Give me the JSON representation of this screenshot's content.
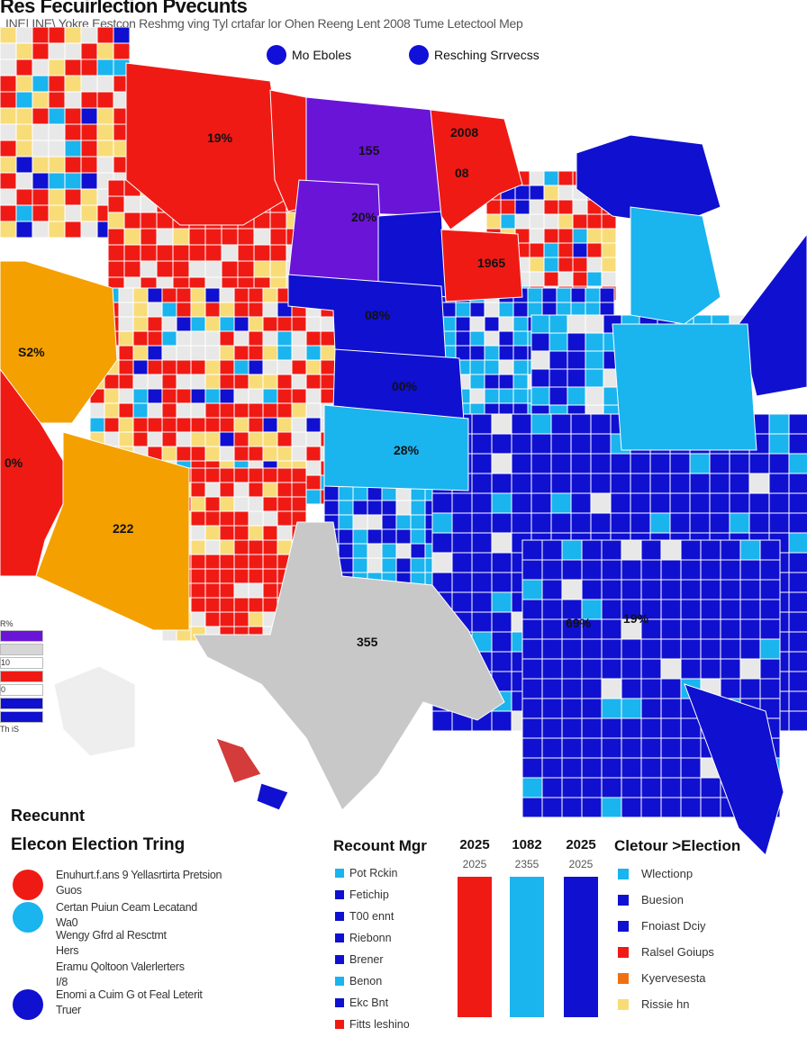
{
  "header": {
    "title": "Res Fecuirlection Pvecunts",
    "subtitle": "INE| INE\\ Yokre Eestcon Reshmg ving Tyl crtafar lor Ohen Reeng Lent 2008 Tume Letectool Mep"
  },
  "top_legend": [
    {
      "label": "Mo Eboles",
      "color": "#1212d8"
    },
    {
      "label": "Resching Srrvecss",
      "color": "#1212d8"
    }
  ],
  "map": {
    "labels": [
      "19%",
      "155",
      "2008",
      "20%",
      "08",
      "1965",
      "08%",
      "00%",
      "28%",
      "S2%",
      "0%",
      "222",
      "355",
      "69%",
      "19%"
    ],
    "colors": {
      "red": "#f01a14",
      "purple": "#6a14d8",
      "blue": "#1010d0",
      "light_blue": "#1ab4ee",
      "orange": "#f4a000",
      "gray": "#c8c8c8",
      "yellow": "#f8dc78"
    }
  },
  "mini_legend": {
    "title": "R%",
    "bottom": "Th iS",
    "bars": [
      {
        "color": "#6a14d8"
      },
      {
        "color": "#d6d6d6"
      },
      {
        "color": "#ffffff",
        "label": "10"
      },
      {
        "color": "#f01a14"
      },
      {
        "color": "#ffffff",
        "label": "0"
      },
      {
        "color": "#1010d0"
      },
      {
        "color": "#1010d0"
      }
    ]
  },
  "bottom": {
    "reecount_title": "Reecunnt",
    "left_title": "Elecon  Election Tring",
    "circle_items": [
      {
        "color": "#f01a14",
        "lines": [
          "Enuhurt.f.ans 9 Yellasrtirta Pretsion",
          "Guos"
        ]
      },
      {
        "color": "#1ab4ee",
        "lines": [
          "Certan Puiun Ceam Lecatand",
          "Wa0"
        ]
      },
      {
        "color": null,
        "lines": [
          "Wengy Gfrd al Resctmt",
          "Hers"
        ]
      },
      {
        "color": null,
        "lines": [
          "Eramu Qoltoon Valerlerters",
          "I/8"
        ]
      },
      {
        "color": "#1010d0",
        "lines": [
          "Enomi a Cuim G ot Feal Leterit",
          "Truer"
        ]
      }
    ],
    "mid_title": "Recount Mgr",
    "mid_items": [
      {
        "color": "#1ab4ee",
        "label": "Pot Rckin"
      },
      {
        "color": "#1010d0",
        "label": "Fetichip"
      },
      {
        "color": "#1010d0",
        "label": "T00 ennt"
      },
      {
        "color": "#1010d0",
        "label": "Riebonn"
      },
      {
        "color": "#1010d0",
        "label": "Brener"
      },
      {
        "color": "#1ab4ee",
        "label": "Benon"
      },
      {
        "color": "#1010d0",
        "label": "Ekc Bnt"
      },
      {
        "color": "#f01a14",
        "label": "Fitts leshino"
      }
    ],
    "bars": [
      {
        "head": "2025",
        "sub": "2025",
        "color": "#f01a14"
      },
      {
        "head": "1082",
        "sub": "2355",
        "color": "#1ab4ee"
      },
      {
        "head": "2025",
        "sub": "2025",
        "color": "#1010d0"
      }
    ],
    "right_title": "Cletour >Election",
    "right_items": [
      {
        "color": "#1ab4ee",
        "label": "Wlectionp"
      },
      {
        "color": "#1010d0",
        "label": "Buesion"
      },
      {
        "color": "#1010d0",
        "label": "Fnoiast Dciy"
      },
      {
        "color": "#f01a14",
        "label": "Ralsel Goiups"
      },
      {
        "color": "#f07010",
        "label": "Kyervesesta"
      },
      {
        "color": "#f8dc78",
        "label": "Rissie hn"
      }
    ]
  }
}
